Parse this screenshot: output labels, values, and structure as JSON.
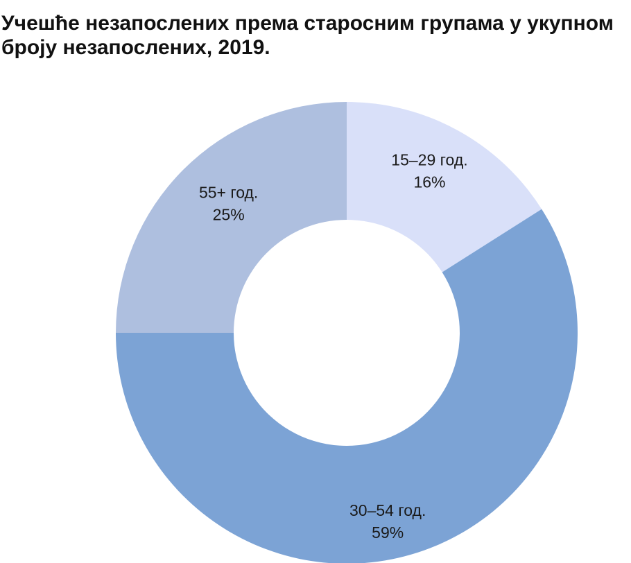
{
  "chart_data": {
    "type": "pie",
    "title": "Учешће незапослених према старосним групама у укупном броју незапослених, 2019.",
    "slices": [
      {
        "label": "15–29 год.",
        "percent_label": "16%",
        "value": 16,
        "color": "#d9e0f9"
      },
      {
        "label": "30–54 год.",
        "percent_label": "59%",
        "value": 59,
        "color": "#7ca3d5"
      },
      {
        "label": "55+ год.",
        "percent_label": "25%",
        "value": 25,
        "color": "#aebfdf"
      }
    ],
    "donut": true
  }
}
